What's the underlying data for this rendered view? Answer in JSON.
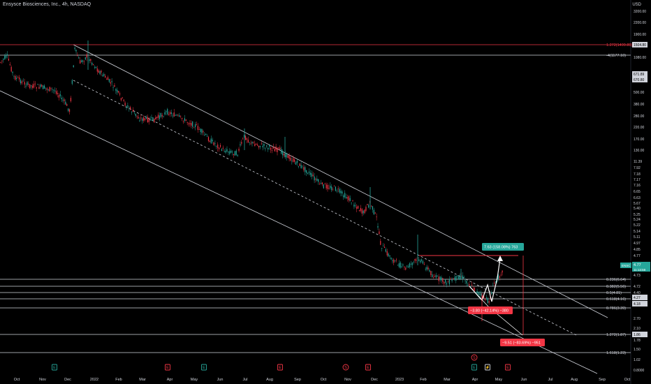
{
  "header": {
    "title": "Ensysce Biosciences, Inc., 4h, NASDAQ",
    "currency": "USD"
  },
  "chart_data": {
    "type": "candlestick",
    "symbol": "ENSC",
    "interval": "4h",
    "x": [
      "Oct",
      "Nov",
      "Dec",
      "2022",
      "Feb",
      "Mar",
      "Apr",
      "May",
      "Jun",
      "Jul",
      "Aug",
      "Sep",
      "Oct",
      "Nov",
      "Dec",
      "2023",
      "Feb",
      "Mar",
      "Apr",
      "May",
      "Jun",
      "Jul",
      "Aug",
      "Sep",
      "Oct"
    ],
    "y_ticks": [
      "3200.00",
      "2200.00",
      "1900.00",
      "1504.80",
      "1080.00",
      "671.89",
      "670.80",
      "500.00",
      "380.00",
      "280.00",
      "220.00",
      "170.00",
      "130.00",
      "11.39",
      "7.92",
      "7.18",
      "7.17",
      "7.16",
      "6.65",
      "6.63",
      "5.67",
      "5.40",
      "5.25",
      "5.24",
      "5.22",
      "5.14",
      "5.11",
      "4.97",
      "4.85",
      "4.77",
      "4.73",
      "4.72",
      "4.40",
      "4.27",
      "4.18",
      "2.70",
      "2.10",
      "1.86",
      "1.78",
      "1.50",
      "1.02",
      "0.8000"
    ],
    "price_label": "ENSC",
    "last_price": "4.77",
    "last_price_sub": "11:13:59",
    "levels": [
      {
        "label": "1.272(1499.89)",
        "color": "#f23645"
      },
      {
        "label": "-4(1177.10)",
        "color": "#d1d4dc"
      },
      {
        "label": "0.236(6.64)",
        "color": "#d1d4dc"
      },
      {
        "label": "0.382(5.56)",
        "color": "#d1d4dc"
      },
      {
        "label": "0.5(4.81)",
        "color": "#d1d4dc"
      },
      {
        "label": "0.618(4.16)",
        "color": "#d1d4dc"
      },
      {
        "label": "0.786(3.39)",
        "color": "#d1d4dc"
      },
      {
        "label": "1.272(1.87)",
        "color": "#d1d4dc"
      },
      {
        "label": "1.618(1.23)",
        "color": "#d1d4dc"
      }
    ],
    "measures": [
      {
        "label": "7.63 (158.08%) 763",
        "color": "#26a69a"
      },
      {
        "label": "−3.80 (−42.14%) −380",
        "color": "#f23645"
      },
      {
        "label": "−9.51 (−83.69%) −951",
        "color": "#f23645"
      }
    ],
    "event_markers": [
      {
        "letter": "E",
        "color": "#26a69a"
      },
      {
        "letter": "E",
        "color": "#f23645"
      },
      {
        "letter": "E",
        "color": "#26a69a"
      },
      {
        "letter": "E",
        "color": "#f23645"
      },
      {
        "letter": "S",
        "color": "#f23645"
      },
      {
        "letter": "E",
        "color": "#f23645"
      },
      {
        "letter": "S",
        "color": "#f23645"
      },
      {
        "letter": "E",
        "color": "#26a69a"
      },
      {
        "letter": "⚡",
        "color": "#d1d4dc"
      },
      {
        "letter": "E",
        "color": "#f23645"
      }
    ],
    "colors": {
      "up": "#26a69a",
      "down": "#f23645",
      "line": "#d1d4dc",
      "background": "#000000"
    }
  }
}
